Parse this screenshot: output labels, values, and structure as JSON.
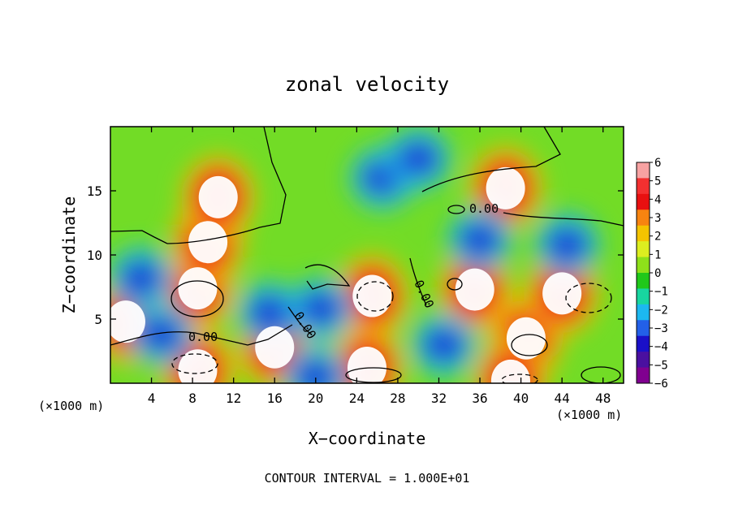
{
  "chart_data": {
    "type": "heatmap",
    "title": "zonal velocity",
    "xlabel": "X−coordinate",
    "ylabel": "Z−coordinate",
    "x_unit_left": "(×1000 m)",
    "x_unit_right": "(×1000 m)",
    "footer": "CONTOUR INTERVAL = 1.000E+01",
    "xlim": [
      0,
      50
    ],
    "ylim": [
      0,
      20
    ],
    "x_ticks": [
      4,
      8,
      12,
      16,
      20,
      24,
      28,
      32,
      36,
      40,
      44,
      48
    ],
    "y_ticks": [
      5,
      10,
      15
    ],
    "contour_labels": [
      "0.00",
      "0.00",
      "0.00",
      "0.00"
    ],
    "colorbar": {
      "ticks": [
        6,
        5,
        4,
        3,
        2,
        1,
        0,
        -1,
        -2,
        -3,
        -4,
        -5,
        -6
      ],
      "colors": [
        "#f7a2a2",
        "#f33030",
        "#e81010",
        "#f78410",
        "#f4c400",
        "#dcee20",
        "#8ee01a",
        "#20c81a",
        "#18d6a0",
        "#1cb8f0",
        "#2360e8",
        "#1a10c8",
        "#4a10a0",
        "#800090"
      ],
      "out_of_range_color": "#ffffff"
    },
    "anomalies": [
      {
        "x": 8.5,
        "z": 7.4,
        "sign": 1
      },
      {
        "x": 9.5,
        "z": 11.0,
        "sign": 1
      },
      {
        "x": 10.5,
        "z": 14.5,
        "sign": 1
      },
      {
        "x": 25.5,
        "z": 6.8,
        "sign": 1
      },
      {
        "x": 35.5,
        "z": 7.3,
        "sign": 1
      },
      {
        "x": 40.5,
        "z": 3.5,
        "sign": 1
      },
      {
        "x": 44.0,
        "z": 7.0,
        "sign": 1
      },
      {
        "x": 8.5,
        "z": 1.0,
        "sign": 1
      },
      {
        "x": 25.0,
        "z": 1.2,
        "sign": 1
      },
      {
        "x": 39.0,
        "z": 0.2,
        "sign": 1
      },
      {
        "x": 16.0,
        "z": 2.8,
        "sign": 1
      },
      {
        "x": 38.5,
        "z": 15.2,
        "sign": 1
      },
      {
        "x": 1.5,
        "z": 4.8,
        "sign": 1
      },
      {
        "x": 26.5,
        "z": 16.0,
        "sign": -1
      },
      {
        "x": 30.0,
        "z": 17.5,
        "sign": -1
      },
      {
        "x": 3.0,
        "z": 8.2,
        "sign": -1
      },
      {
        "x": 15.5,
        "z": 5.5,
        "sign": -1
      },
      {
        "x": 36.0,
        "z": 11.2,
        "sign": -1
      },
      {
        "x": 44.5,
        "z": 10.8,
        "sign": -1
      },
      {
        "x": 20.5,
        "z": 5.8,
        "sign": -1
      },
      {
        "x": 32.5,
        "z": 3.0,
        "sign": -1
      },
      {
        "x": 5.0,
        "z": 3.8,
        "sign": -1
      },
      {
        "x": 20.0,
        "z": 0.5,
        "sign": -1
      }
    ]
  }
}
